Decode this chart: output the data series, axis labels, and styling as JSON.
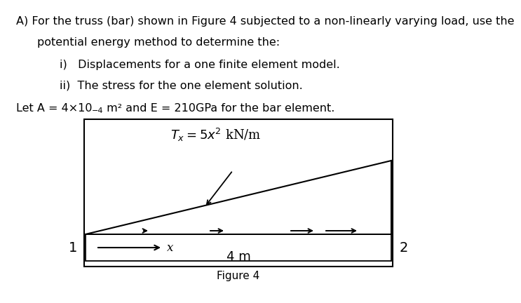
{
  "title_line1": "A) For the truss (bar) shown in Figure 4 subjected to a non-linearly varying load, use the",
  "title_line2": "potential energy method to determine the:",
  "item_i": "i)   Displacements for a one finite element model.",
  "item_ii": "ii)  The stress for the one element solution.",
  "let_prefix": "Let A = 4×10",
  "let_exp": "−4",
  "let_suffix": " m² and E = 210GPa for the bar element.",
  "formula_text": "$T_x = 5x^2$ kN/m",
  "figure_label": "Figure 4",
  "length_label": "4 m",
  "node1": "1",
  "node2": "2",
  "x_label": "x",
  "box_color": "#000000",
  "bar_color": "#000000",
  "arrow_color": "#000000",
  "bg_color": "#ffffff",
  "text_color": "#000000",
  "font_size_text": 11.5,
  "font_size_formula": 13,
  "font_size_node": 14,
  "font_size_label": 12
}
